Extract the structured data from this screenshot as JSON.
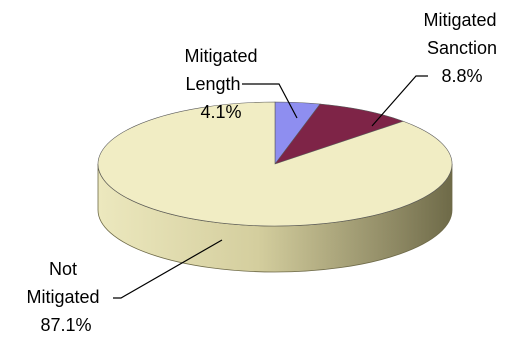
{
  "chart_data": {
    "type": "pie",
    "title": "",
    "slices": [
      {
        "name": "Mitigated Length",
        "value": 4.1,
        "color": "#8E8EF0",
        "label_lines": [
          "Mitigated",
          "Length",
          "4.1%"
        ]
      },
      {
        "name": "Mitigated Sanction",
        "value": 8.8,
        "color": "#7E2447",
        "label_lines": [
          "Mitigated",
          "Sanction",
          "8.8%"
        ]
      },
      {
        "name": "Not Mitigated",
        "value": 87.1,
        "color": "#F1EDC4",
        "label_lines": [
          "Not",
          "Mitigated",
          "87.1%"
        ]
      }
    ],
    "start_angle": "12 o'clock",
    "direction": "clockwise",
    "style": "3d-tilted",
    "legend": "none",
    "data_labels": "outside-with-leader-lines"
  }
}
